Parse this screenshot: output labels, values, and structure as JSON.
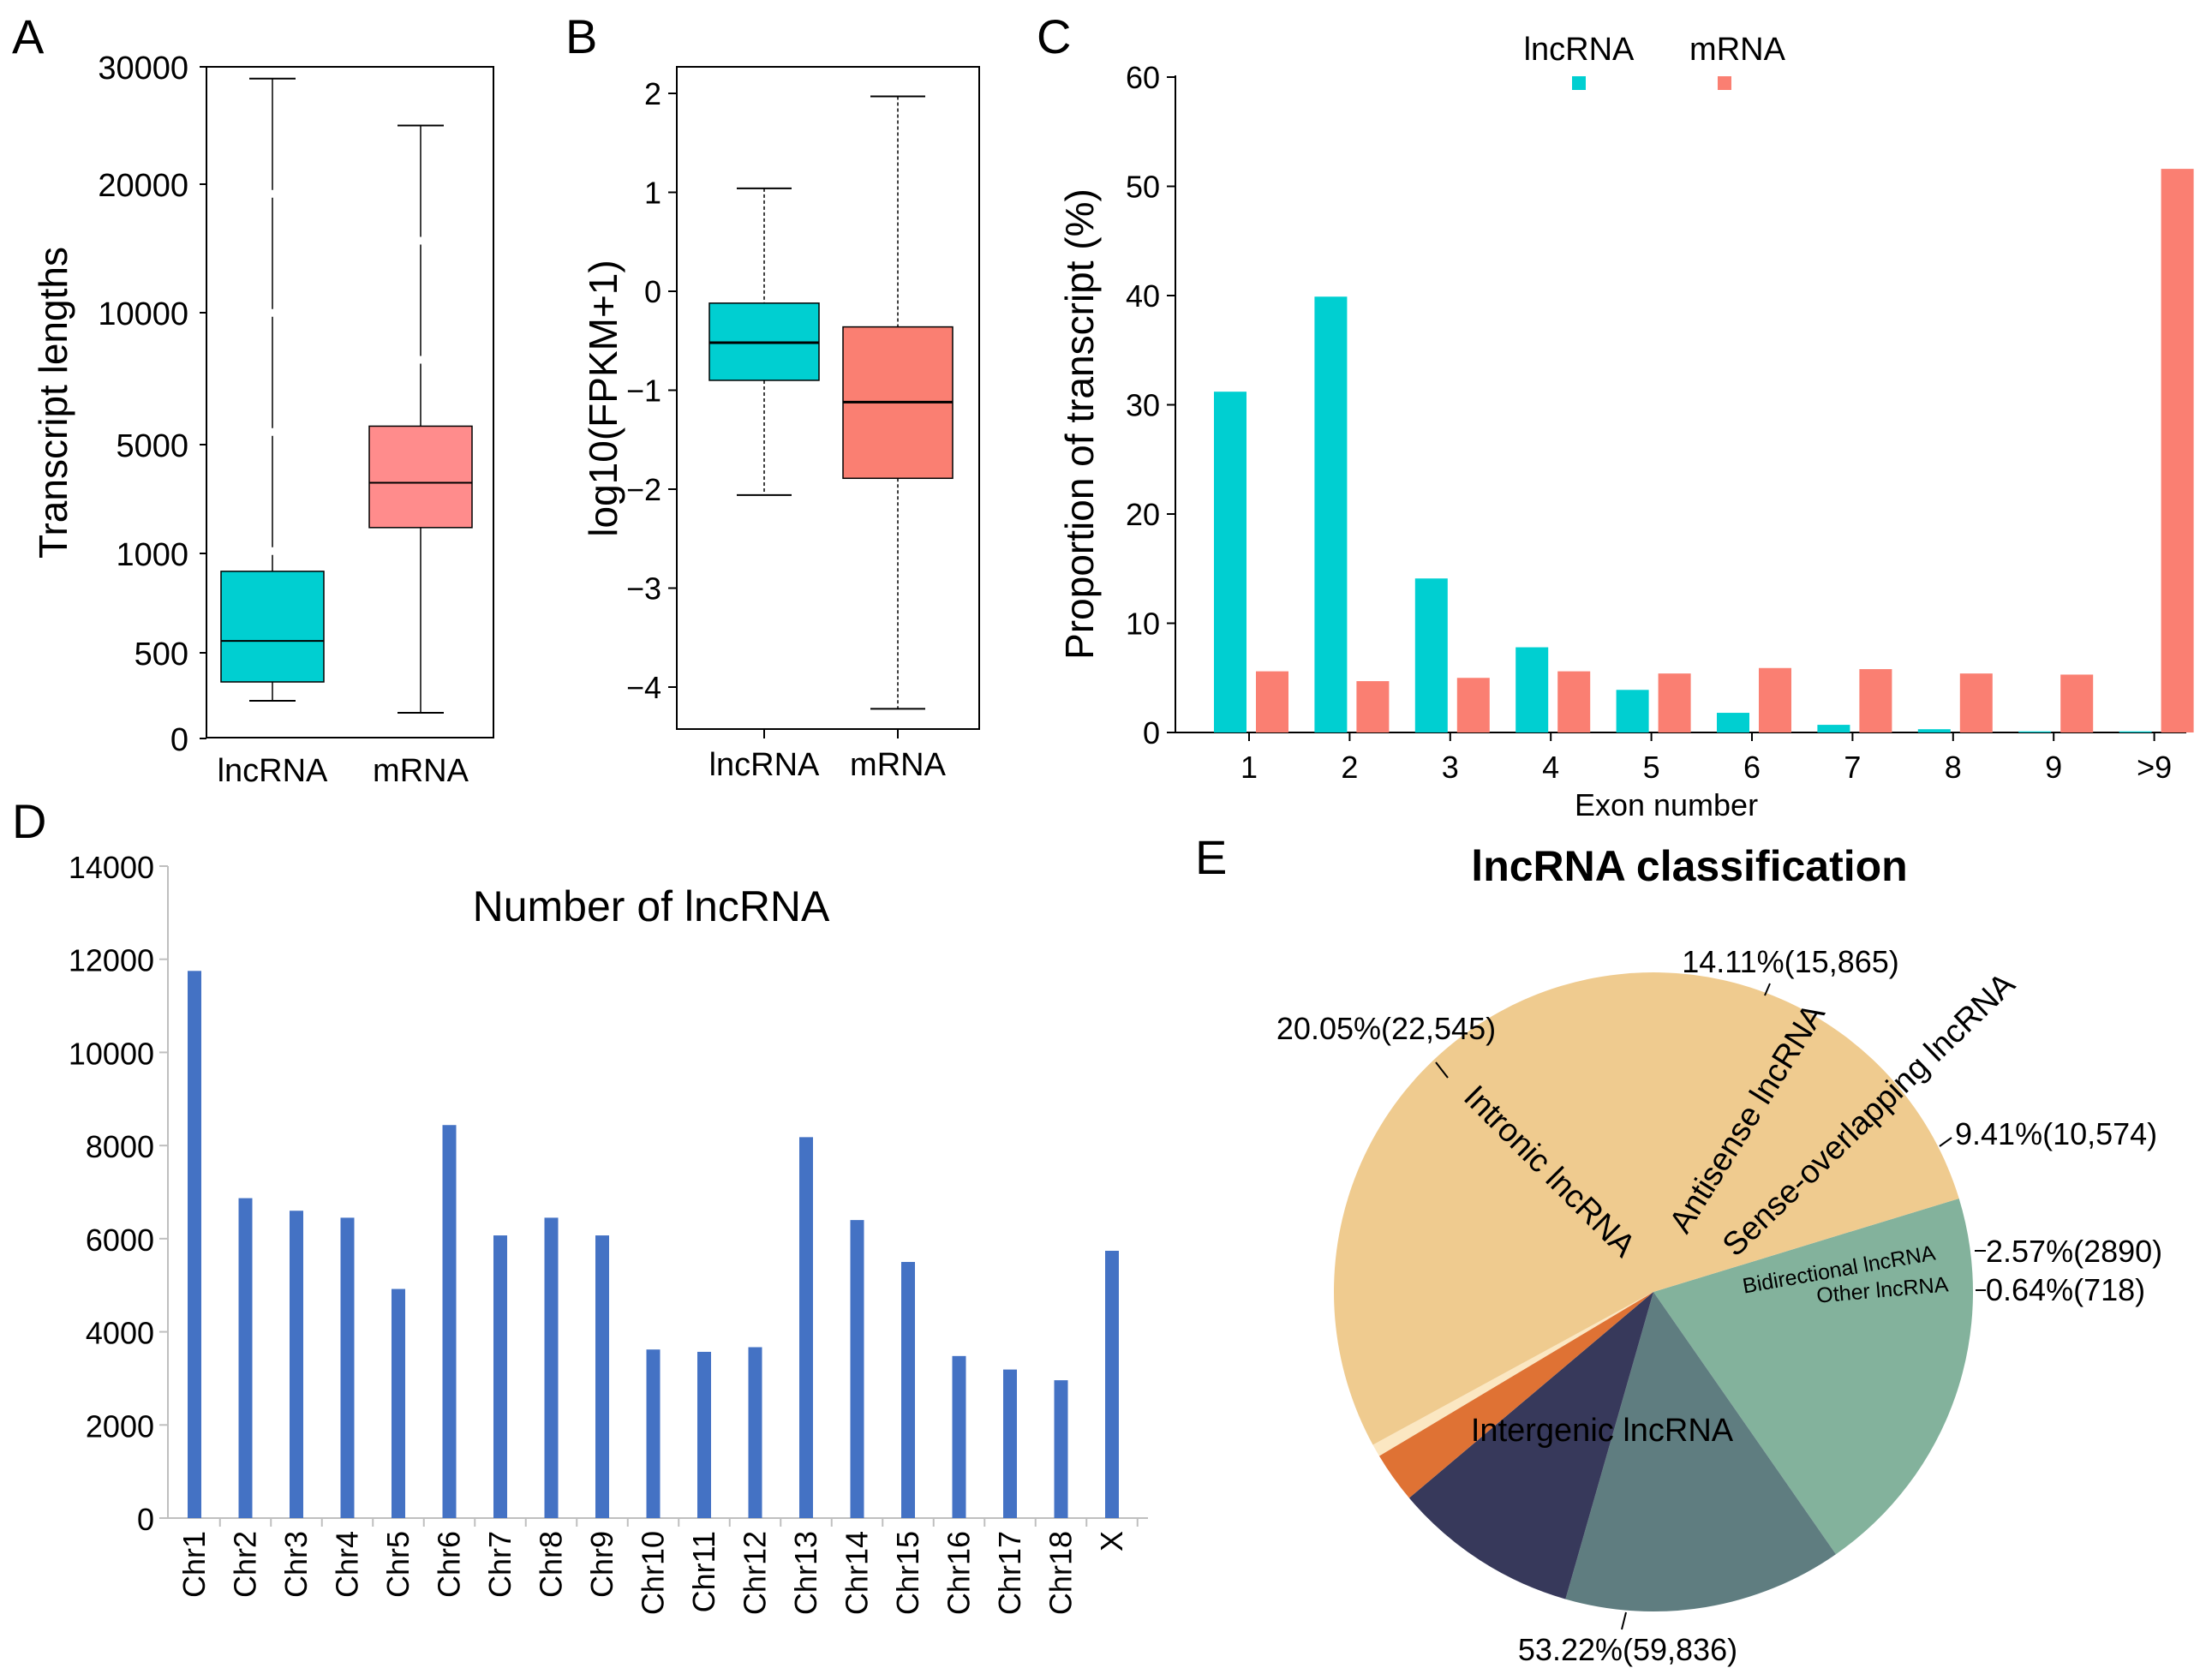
{
  "colors": {
    "lncrna": "#00cfd1",
    "mrna": "#fa7f72",
    "mrna_box_a": "#ff8c8c",
    "bar_d": "#4472c4",
    "pie": [
      "#efcb8f",
      "#83b29c",
      "#5f7d80",
      "#37395b",
      "#df7234",
      "#fbe7c2"
    ]
  },
  "panels": {
    "a": "A",
    "b": "B",
    "c": "C",
    "d": "D",
    "e": "E"
  },
  "chart_data": [
    {
      "type": "boxplot",
      "panel": "A",
      "ylabel": "Transcript lengths",
      "y_ticks": [
        "0",
        "500",
        "1000",
        "5000",
        "10000",
        "20000",
        "30000"
      ],
      "categories": [
        "lncRNA",
        "mRNA"
      ],
      "boxes": [
        {
          "name": "lncRNA",
          "min": 220,
          "q1": 330,
          "median": 560,
          "q3": 910,
          "max": 29000
        },
        {
          "name": "mRNA",
          "min": 150,
          "q1": 1950,
          "median": 3600,
          "q3": 5700,
          "max": 25000
        }
      ]
    },
    {
      "type": "boxplot",
      "panel": "B",
      "ylabel": "log10(FPKM+1)",
      "ylim": [
        -4.4,
        2.2
      ],
      "y_ticks": [
        "-4",
        "-3",
        "-2",
        "-1",
        "0",
        "1",
        "2"
      ],
      "categories": [
        "lncRNA",
        "mRNA"
      ],
      "boxes": [
        {
          "name": "lncRNA",
          "min": -2.06,
          "q1": -0.9,
          "median": -0.52,
          "q3": -0.12,
          "max": 1.04
        },
        {
          "name": "mRNA",
          "min": -4.22,
          "q1": -1.89,
          "median": -1.12,
          "q3": -0.36,
          "max": 1.97
        }
      ]
    },
    {
      "type": "bar",
      "panel": "C",
      "xlabel": "Exon number",
      "ylabel": "Proportion of transcript (%)",
      "ylim": [
        0,
        60
      ],
      "y_ticks": [
        0,
        10,
        20,
        30,
        40,
        50,
        60
      ],
      "categories": [
        "1",
        "2",
        "3",
        "4",
        "5",
        "6",
        "7",
        "8",
        "9",
        ">9"
      ],
      "series": [
        {
          "name": "lncRNA",
          "values": [
            31.2,
            39.9,
            14.1,
            7.8,
            3.9,
            1.8,
            0.7,
            0.3,
            0.1,
            0.1
          ]
        },
        {
          "name": "mRNA",
          "values": [
            5.6,
            4.7,
            5.0,
            5.6,
            5.4,
            5.9,
            5.8,
            5.4,
            5.3,
            51.6
          ]
        }
      ]
    },
    {
      "type": "bar",
      "panel": "D",
      "title": "Number of lncRNA",
      "ylim": [
        0,
        14000
      ],
      "y_ticks": [
        0,
        2000,
        4000,
        6000,
        8000,
        10000,
        12000,
        14000
      ],
      "categories": [
        "Chr1",
        "Chr2",
        "Chr3",
        "Chr4",
        "Chr5",
        "Chr6",
        "Chr7",
        "Chr8",
        "Chr9",
        "Chr10",
        "Chr11",
        "Chr12",
        "Chr13",
        "Chr14",
        "Chr15",
        "Chr16",
        "Chr17",
        "Chr18",
        "X"
      ],
      "values": [
        11750,
        6870,
        6600,
        6450,
        4920,
        8440,
        6070,
        6450,
        6070,
        3620,
        3570,
        3670,
        8180,
        6400,
        5500,
        3480,
        3190,
        2960,
        5740
      ]
    },
    {
      "type": "pie",
      "panel": "E",
      "title": "lncRNA classification",
      "slices": [
        {
          "name": "Intergenic lncRNA",
          "percent": 53.22,
          "label": "53.22%(59,836)"
        },
        {
          "name": "Intronic lncRNA",
          "percent": 20.05,
          "label": "20.05%(22,545)"
        },
        {
          "name": "Antisense lncRNA",
          "percent": 14.11,
          "label": "14.11%(15,865)"
        },
        {
          "name": "Sense-overlapping lncRNA",
          "percent": 9.41,
          "label": "9.41%(10,574)"
        },
        {
          "name": "Bidirectional lncRNA",
          "percent": 2.57,
          "label": "2.57%(2890)"
        },
        {
          "name": "Other lncRNA",
          "percent": 0.64,
          "label": "0.64%(718)"
        }
      ]
    }
  ]
}
